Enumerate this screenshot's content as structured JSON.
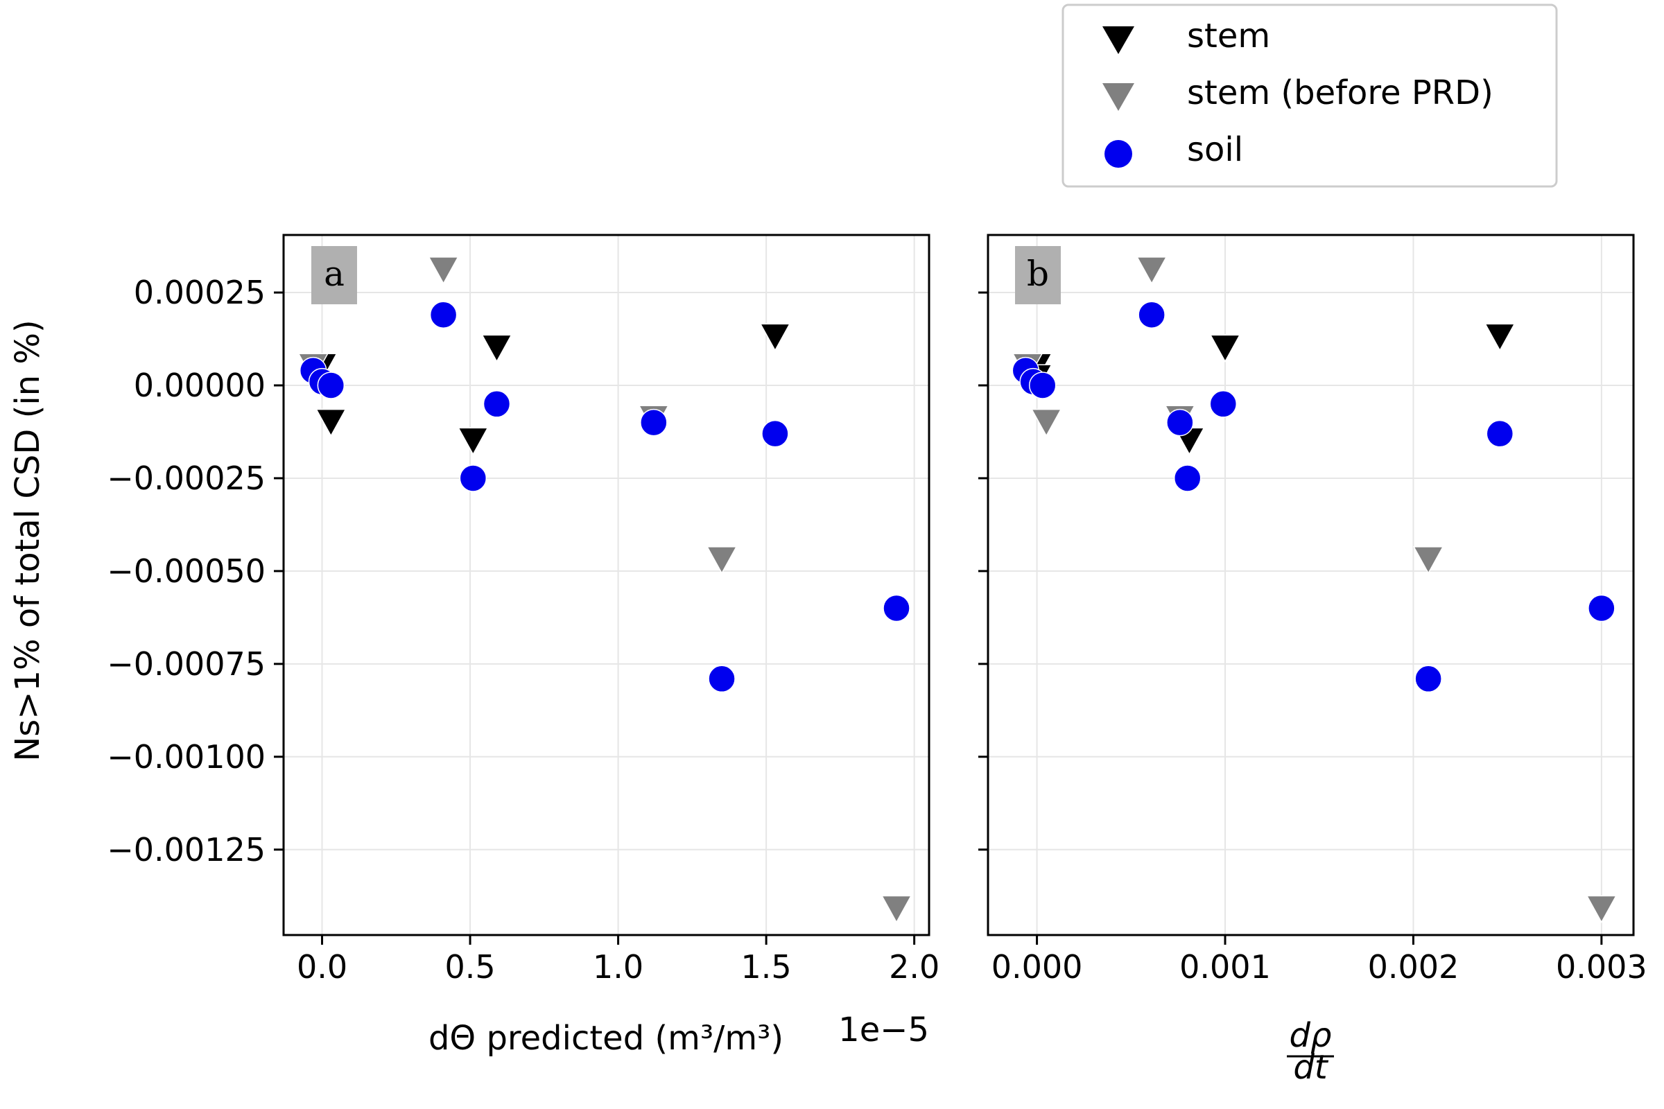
{
  "legend": {
    "items": [
      {
        "label": "stem",
        "marker": "triangle-down",
        "color": "#000000"
      },
      {
        "label": "stem (before PRD)",
        "marker": "triangle-down",
        "color": "#808080"
      },
      {
        "label": "soil",
        "marker": "circle",
        "color": "#0000ee"
      }
    ],
    "placement": "top-right"
  },
  "ylabel": "Ns>1% of total CSD (in %)",
  "chart_data": [
    {
      "type": "scatter",
      "panel": "a",
      "xlabel": "dΘ predicted (m³/m³)",
      "x_offset_text": "1e−5",
      "x_scale": 1e-05,
      "xlim": [
        -0.13,
        2.05
      ],
      "ylim": [
        -0.00148,
        0.000405
      ],
      "xticks": [
        0.0,
        0.5,
        1.0,
        1.5,
        2.0
      ],
      "xtick_labels": [
        "0.0",
        "0.5",
        "1.0",
        "1.5",
        "2.0"
      ],
      "yticks": [
        0.00025,
        0.0,
        -0.00025,
        -0.0005,
        -0.00075,
        -0.001,
        -0.00125
      ],
      "ytick_labels": [
        "0.00025",
        "0.00000",
        "−0.00025",
        "−0.00050",
        "−0.00075",
        "−0.00100",
        "−0.00125"
      ],
      "grid": true,
      "series": [
        {
          "name": "stem",
          "marker": "triangle-down",
          "color": "#000000",
          "points": [
            [
              0.0,
              5e-05
            ],
            [
              0.03,
              -0.0001
            ],
            [
              0.51,
              -0.00015
            ],
            [
              0.59,
              0.0001
            ],
            [
              1.53,
              0.00013
            ]
          ]
        },
        {
          "name": "stem (before PRD)",
          "marker": "triangle-down",
          "color": "#808080",
          "points": [
            [
              -0.03,
              5e-05
            ],
            [
              0.41,
              0.00031
            ],
            [
              1.12,
              -9e-05
            ],
            [
              1.35,
              -0.00047
            ],
            [
              1.94,
              -0.00141
            ]
          ]
        },
        {
          "name": "soil",
          "marker": "circle",
          "color": "#0000ee",
          "points": [
            [
              -0.03,
              4e-05
            ],
            [
              0.0,
              1e-05
            ],
            [
              0.03,
              0.0
            ],
            [
              0.41,
              0.00019
            ],
            [
              0.51,
              -0.00025
            ],
            [
              0.59,
              -5e-05
            ],
            [
              1.12,
              -0.0001
            ],
            [
              1.53,
              -0.00013
            ],
            [
              1.35,
              -0.00079
            ],
            [
              1.94,
              -0.0006
            ]
          ]
        }
      ]
    },
    {
      "type": "scatter",
      "panel": "b",
      "xlabel_num": "dρ",
      "xlabel_den": "dt",
      "xlim": [
        -0.00026,
        0.00317
      ],
      "ylim": [
        -0.00148,
        0.000405
      ],
      "xticks": [
        0.0,
        0.001,
        0.002,
        0.003
      ],
      "xtick_labels": [
        "0.000",
        "0.001",
        "0.002",
        "0.003"
      ],
      "grid": true,
      "series": [
        {
          "name": "stem",
          "marker": "triangle-down",
          "color": "#000000",
          "points": [
            [
              0.0,
              5e-05
            ],
            [
              0.0,
              2e-05
            ],
            [
              0.00081,
              -0.00015
            ],
            [
              0.001,
              0.0001
            ],
            [
              0.00246,
              0.00013
            ]
          ]
        },
        {
          "name": "stem (before PRD)",
          "marker": "triangle-down",
          "color": "#808080",
          "points": [
            [
              -5e-05,
              5e-05
            ],
            [
              5e-05,
              -0.0001
            ],
            [
              0.00061,
              0.00031
            ],
            [
              0.00076,
              -9e-05
            ],
            [
              0.00208,
              -0.00047
            ],
            [
              0.003,
              -0.00141
            ]
          ]
        },
        {
          "name": "soil",
          "marker": "circle",
          "color": "#0000ee",
          "points": [
            [
              -6e-05,
              4e-05
            ],
            [
              -2e-05,
              1e-05
            ],
            [
              3e-05,
              0.0
            ],
            [
              0.00061,
              0.00019
            ],
            [
              0.00076,
              -0.0001
            ],
            [
              0.0008,
              -0.00025
            ],
            [
              0.00099,
              -5e-05
            ],
            [
              0.00246,
              -0.00013
            ],
            [
              0.00208,
              -0.00079
            ],
            [
              0.003,
              -0.0006
            ]
          ]
        }
      ]
    }
  ]
}
